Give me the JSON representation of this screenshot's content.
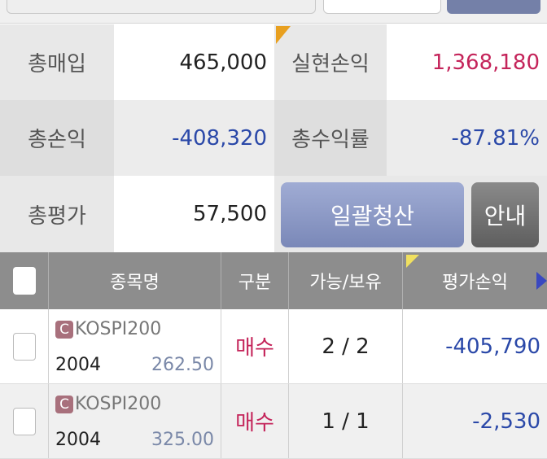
{
  "summary": {
    "total_purchase_label": "총매입",
    "total_purchase": "465,000",
    "realized_pl_label": "실현손익",
    "realized_pl": "1,368,180",
    "total_pl_label": "총손익",
    "total_pl": "-408,320",
    "total_return_label": "총수익률",
    "total_return": "-87.81%",
    "total_eval_label": "총평가",
    "total_eval": "57,500",
    "liquidate_all_label": "일괄청산",
    "guide_label": "안내"
  },
  "colors": {
    "positive": "#c4245a",
    "negative": "#2a48a8",
    "button": "#8c9ac4"
  },
  "table": {
    "headers": [
      "종목명",
      "구분",
      "가능/보유",
      "평가손익"
    ],
    "rows": [
      {
        "badge": "C",
        "name": "KOSPI200",
        "code": "2004",
        "price": "262.50",
        "side": "매수",
        "qty": "2 / 2",
        "pl": "-405,790"
      },
      {
        "badge": "C",
        "name": "KOSPI200",
        "code": "2004",
        "price": "325.00",
        "side": "매수",
        "qty": "1 / 1",
        "pl": "-2,530"
      }
    ]
  }
}
